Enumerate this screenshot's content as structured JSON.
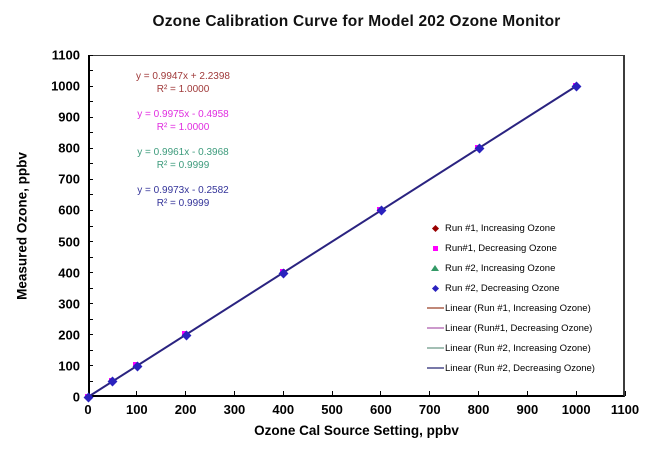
{
  "title": "Ozone Calibration Curve for Model 202 Ozone Monitor",
  "axes": {
    "x": {
      "label": "Ozone Cal Source Setting, ppbv",
      "min": 0,
      "max": 1100,
      "tick_step": 100
    },
    "y": {
      "label": "Measured Ozone, ppbv",
      "min": 0,
      "max": 1100,
      "tick_step": 100,
      "minor_step": 50
    }
  },
  "equations": [
    {
      "line1": "y = 0.9947x + 2.2398",
      "line2": "R² = 1.0000",
      "color": "#A03A3A"
    },
    {
      "line1": "y = 0.9975x - 0.4958",
      "line2": "R² = 1.0000",
      "color": "#E02DE0"
    },
    {
      "line1": "y = 0.9961x - 0.3968",
      "line2": "R² = 0.9999",
      "color": "#3D9B7C"
    },
    {
      "line1": "y = 0.9973x - 0.2582",
      "line2": "R² = 0.9999",
      "color": "#333399"
    }
  ],
  "legend": [
    {
      "type": "diamond",
      "color": "#990000",
      "label": "Run #1, Increasing Ozone"
    },
    {
      "type": "square",
      "color": "#FF00FF",
      "label": "Run#1, Decreasing Ozone"
    },
    {
      "type": "triangle",
      "color": "#339966",
      "label": "Run #2, Increasing Ozone"
    },
    {
      "type": "diamond",
      "color": "#2A22BE",
      "label": "Run #2, Decreasing Ozone"
    },
    {
      "type": "line",
      "color": "#C08878",
      "label": "Linear (Run #1, Increasing Ozone)"
    },
    {
      "type": "line",
      "color": "#CC99CC",
      "label": "Linear (Run#1, Decreasing Ozone)"
    },
    {
      "type": "line",
      "color": "#A3BFB4",
      "label": "Linear (Run #2, Increasing Ozone)"
    },
    {
      "type": "line",
      "color": "#7878A8",
      "label": "Linear (Run #2, Decreasing Ozone)"
    }
  ],
  "plot_marker_colors": {
    "square": "#FF00FF",
    "diamond": "#2A22BE"
  },
  "trendline_plot_color": "#2A2380",
  "chart_data": {
    "type": "scatter",
    "title": "Ozone Calibration Curve for Model 202 Ozone Monitor",
    "xlabel": "Ozone Cal Source Setting, ppbv",
    "ylabel": "Measured Ozone, ppbv",
    "xlim": [
      0,
      1100
    ],
    "ylim": [
      0,
      1100
    ],
    "tick_step": 100,
    "grid": false,
    "legend_position": "inside-right-lower",
    "x": [
      0,
      50,
      100,
      200,
      400,
      600,
      800,
      1000
    ],
    "series": [
      {
        "name": "Run #1, Increasing Ozone",
        "marker": "diamond",
        "color": "#990000",
        "values": [
          0,
          50,
          100,
          200,
          400,
          600,
          800,
          1000
        ],
        "trendline": {
          "name": "Linear (Run #1, Increasing Ozone)",
          "equation": "y = 0.9947x + 2.2398",
          "r2": 1.0,
          "color": "#C08878"
        }
      },
      {
        "name": "Run#1, Decreasing Ozone",
        "marker": "square",
        "color": "#FF00FF",
        "values": [
          0,
          50,
          100,
          200,
          400,
          600,
          800,
          1000
        ],
        "trendline": {
          "name": "Linear (Run#1, Decreasing Ozone)",
          "equation": "y = 0.9975x - 0.4958",
          "r2": 1.0,
          "color": "#CC99CC"
        }
      },
      {
        "name": "Run #2, Increasing Ozone",
        "marker": "triangle",
        "color": "#339966",
        "values": [
          0,
          50,
          100,
          200,
          400,
          600,
          800,
          1000
        ],
        "trendline": {
          "name": "Linear (Run #2, Increasing Ozone)",
          "equation": "y = 0.9961x - 0.3968",
          "r2": 0.9999,
          "color": "#A3BFB4"
        }
      },
      {
        "name": "Run #2, Decreasing Ozone",
        "marker": "diamond",
        "color": "#2A22BE",
        "values": [
          0,
          50,
          100,
          200,
          400,
          600,
          800,
          1000
        ],
        "trendline": {
          "name": "Linear (Run #2, Decreasing Ozone)",
          "equation": "y = 0.9973x - 0.2582",
          "r2": 0.9999,
          "color": "#7878A8"
        }
      }
    ]
  }
}
